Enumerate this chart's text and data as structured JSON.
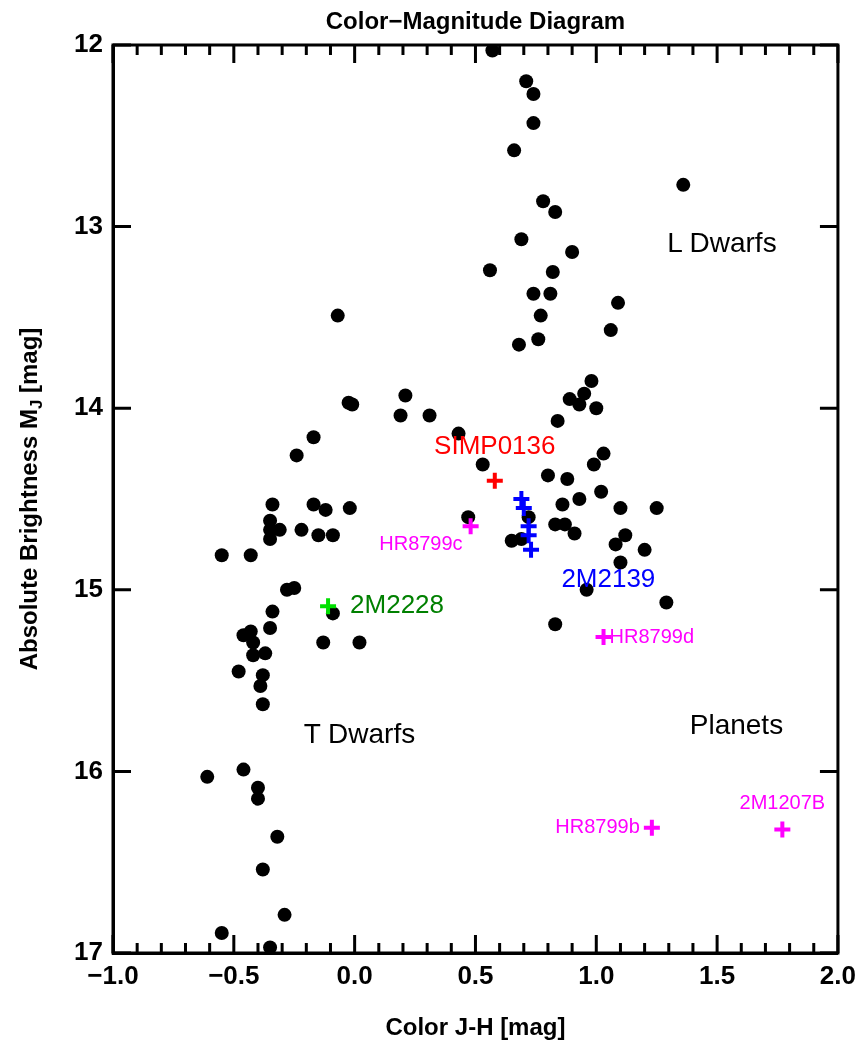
{
  "chart_data": {
    "type": "scatter",
    "title": "Color−Magnitude Diagram",
    "xlabel": "Color J-H [mag]",
    "ylabel": "Absolute Brightness M$_{J}$ [mag]",
    "xlim": [
      -1,
      2
    ],
    "ylim": [
      17,
      12
    ],
    "xticks": [
      {
        "value": -1,
        "label": "−1.0"
      },
      {
        "value": -0.5,
        "label": "−0.5"
      },
      {
        "value": 0,
        "label": "0.0"
      },
      {
        "value": 0.5,
        "label": "0.5"
      },
      {
        "value": 1,
        "label": "1.0"
      },
      {
        "value": 1.5,
        "label": "1.5"
      },
      {
        "value": 2,
        "label": "2.0"
      }
    ],
    "yticks": [
      12,
      13,
      14,
      15,
      16,
      17
    ],
    "grid": false,
    "legend": false,
    "series": [
      {
        "color": "#000000",
        "marker": "circle",
        "x": [
          -0.07,
          -0.025,
          -0.01,
          0.21,
          0.19,
          0.31,
          0.43,
          -0.17,
          -0.24,
          -0.34,
          -0.17,
          -0.12,
          -0.02,
          0.47,
          -0.35,
          -0.35,
          -0.31,
          -0.35,
          -0.22,
          -0.15,
          -0.09,
          -0.55,
          -0.43,
          -0.28,
          -0.25,
          -0.09,
          -0.34,
          -0.35,
          -0.46,
          -0.43,
          -0.42,
          -0.42,
          -0.37,
          -0.13,
          0.02,
          -0.48,
          -0.38,
          -0.39,
          -0.38,
          -0.61,
          -0.46,
          -0.4,
          -0.4,
          -0.32,
          -0.38,
          -0.29,
          -0.55,
          -0.35,
          0.57,
          0.71,
          0.74,
          0.74,
          0.66,
          1.36,
          0.78,
          0.83,
          0.69,
          0.9,
          0.56,
          0.82,
          0.74,
          0.81,
          1.09,
          0.77,
          1.06,
          0.76,
          0.68,
          0.98,
          0.95,
          0.89,
          0.93,
          1.0,
          0.84,
          1.03,
          0.99,
          0.53,
          0.8,
          0.88,
          1.02,
          0.93,
          0.86,
          1.1,
          1.25,
          0.72,
          0.83,
          0.87,
          0.91,
          0.65,
          0.69,
          1.12,
          1.08,
          1.2,
          1.1,
          0.96,
          1.29,
          0.83
        ],
        "values": [
          13.49,
          13.97,
          13.98,
          13.93,
          14.04,
          14.04,
          14.14,
          14.16,
          14.26,
          14.53,
          14.53,
          14.56,
          14.55,
          14.6,
          14.62,
          14.67,
          14.67,
          14.72,
          14.67,
          14.7,
          14.7,
          14.81,
          14.81,
          15.0,
          14.99,
          15.13,
          15.12,
          15.21,
          15.25,
          15.23,
          15.29,
          15.36,
          15.35,
          15.29,
          15.29,
          15.45,
          15.47,
          15.53,
          15.63,
          16.03,
          15.99,
          16.09,
          16.15,
          16.36,
          16.54,
          16.79,
          16.89,
          16.97,
          12.03,
          12.2,
          12.27,
          12.43,
          12.58,
          12.77,
          12.86,
          12.92,
          13.07,
          13.14,
          13.24,
          13.25,
          13.37,
          13.37,
          13.42,
          13.49,
          13.57,
          13.62,
          13.65,
          13.85,
          13.92,
          13.95,
          13.98,
          14.0,
          14.07,
          14.25,
          14.31,
          14.31,
          14.37,
          14.39,
          14.46,
          14.5,
          14.53,
          14.55,
          14.55,
          14.6,
          14.64,
          14.64,
          14.69,
          14.73,
          14.72,
          14.7,
          14.75,
          14.78,
          14.85,
          15.0,
          15.07,
          15.19
        ]
      },
      {
        "name": "SIMP0136",
        "color": "#ff0000",
        "marker": "cross",
        "x": [
          0.58
        ],
        "values": [
          14.4
        ]
      },
      {
        "name": "2M2139",
        "color": "#0000ff",
        "marker": "cross",
        "x": [
          0.69,
          0.7,
          0.72,
          0.72,
          0.73
        ],
        "values": [
          14.5,
          14.55,
          14.65,
          14.7,
          14.78
        ]
      },
      {
        "name": "2M2228",
        "color": "#00e000",
        "marker": "cross",
        "x": [
          -0.11
        ],
        "values": [
          15.09
        ]
      },
      {
        "name": "HR8799c",
        "color": "#ff00ff",
        "marker": "cross",
        "x": [
          0.48
        ],
        "values": [
          14.65
        ]
      },
      {
        "name": "HR8799d",
        "color": "#ff00ff",
        "marker": "cross",
        "x": [
          1.03
        ],
        "values": [
          15.26
        ]
      },
      {
        "name": "HR8799b",
        "color": "#ff00ff",
        "marker": "cross",
        "x": [
          1.23
        ],
        "values": [
          16.31
        ]
      },
      {
        "name": "2M1207B",
        "color": "#ff00ff",
        "marker": "cross",
        "x": [
          1.77
        ],
        "values": [
          16.32
        ]
      }
    ],
    "annotations": [
      "L Dwarfs",
      "T Dwarfs",
      "Planets"
    ]
  }
}
